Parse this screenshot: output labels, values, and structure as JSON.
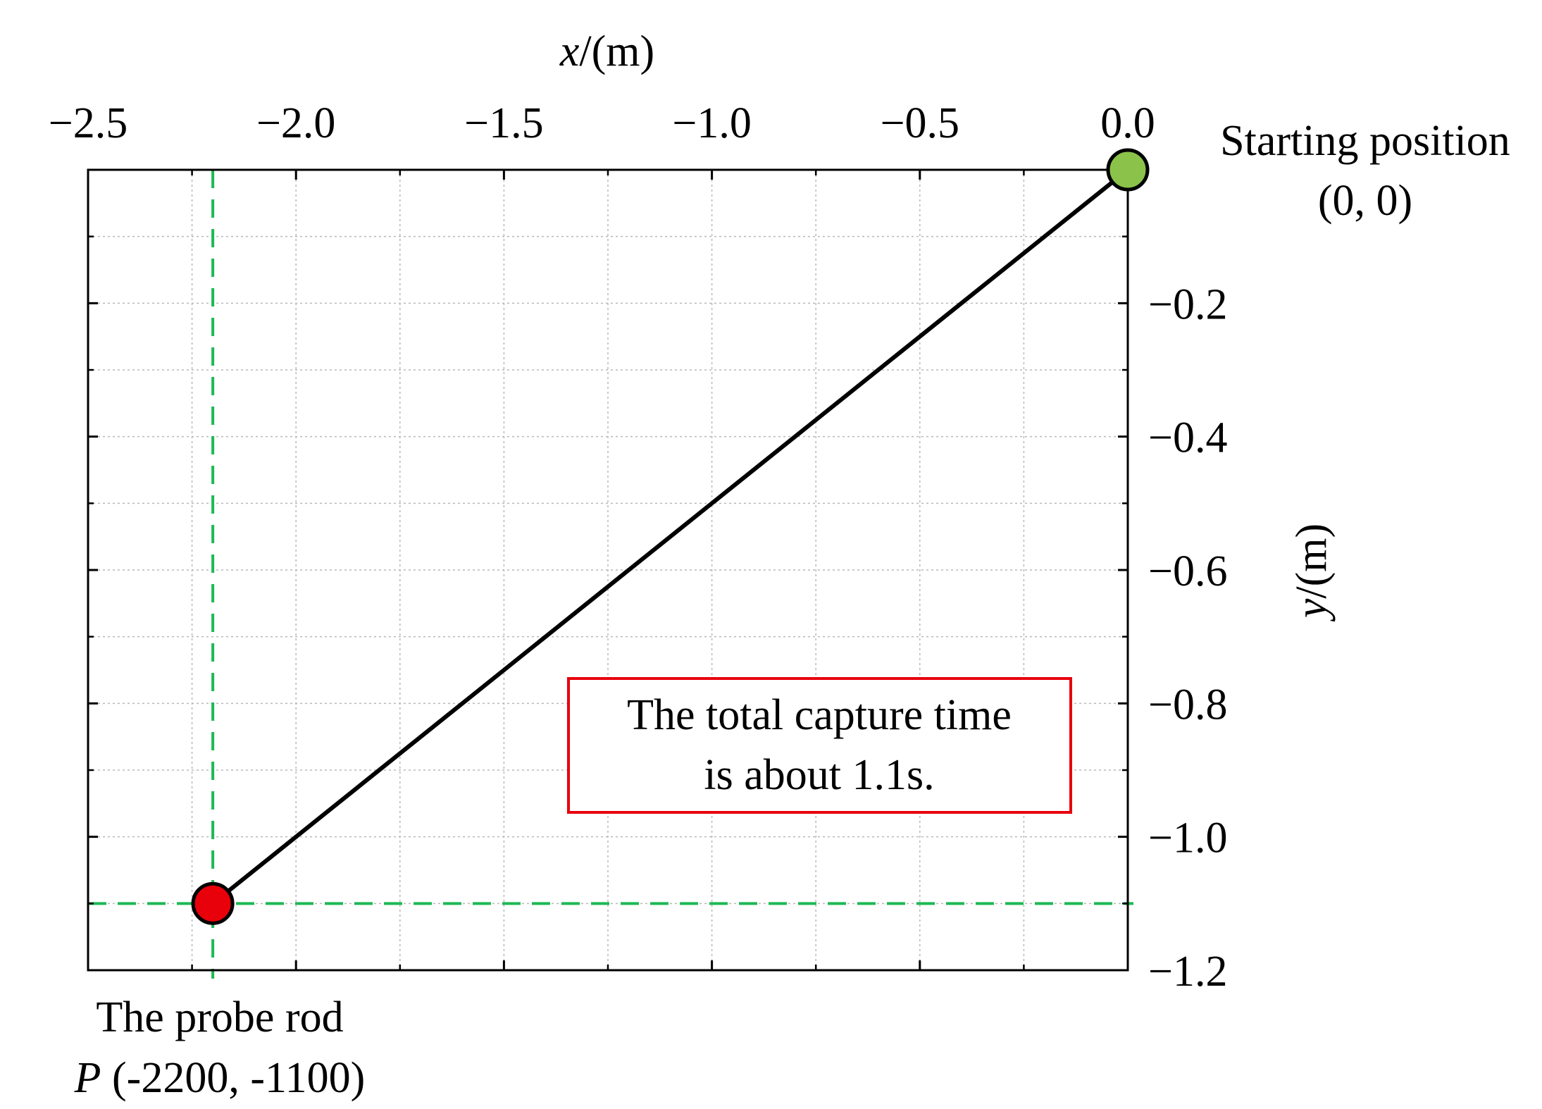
{
  "chart_data": {
    "type": "line",
    "xlabel": {
      "var": "x",
      "unit": "/(m)"
    },
    "ylabel": {
      "var": "y",
      "unit": "/(m)"
    },
    "xlim": [
      -2.5,
      0.0
    ],
    "ylim": [
      0.0,
      -1.2
    ],
    "x_ticks": [
      -2.5,
      -2.0,
      -1.5,
      -1.0,
      -0.5,
      0.0
    ],
    "x_tick_labels": [
      "−2.5",
      "−2.0",
      "−1.5",
      "−1.0",
      "−0.5",
      "0.0"
    ],
    "y_ticks": [
      -0.2,
      -0.4,
      -0.6,
      -0.8,
      -1.0,
      -1.2
    ],
    "y_tick_labels": [
      "−0.2",
      "−0.4",
      "−0.6",
      "−0.8",
      "−1.0",
      "−1.2"
    ],
    "x_axis_position": "top",
    "y_axis_position": "right",
    "grid": true,
    "series": [
      {
        "x": [
          0.0,
          -2.2
        ],
        "y": [
          0.0,
          -1.1
        ],
        "color": "#000000"
      }
    ],
    "points": [
      {
        "x": 0.0,
        "y": 0.0,
        "color": "#8bc34a"
      },
      {
        "x": -2.2,
        "y": -1.1,
        "color": "#e8000b"
      }
    ],
    "reference_lines": {
      "x": -2.2,
      "y": -1.1,
      "color": "#1db954"
    },
    "annotations": {
      "start": {
        "line1": "Starting position",
        "line2": "(0, 0)"
      },
      "probe": {
        "line1": "The probe rod",
        "italic": "P",
        "line2": " (-2200, -1100)"
      },
      "capture": {
        "line1": "The total capture time",
        "line2": "is about 1.1s.",
        "border_color": "#e8000b"
      }
    }
  }
}
